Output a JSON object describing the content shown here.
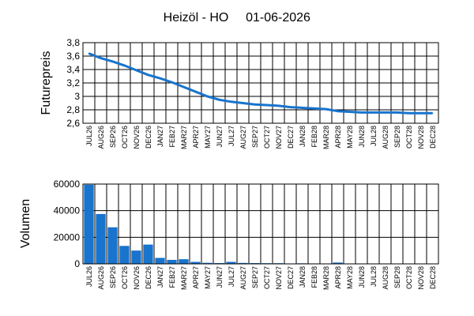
{
  "header": {
    "title": "Heizöl - HO",
    "date": "01-06-2026"
  },
  "colors": {
    "series": "#1874cd",
    "grid": "#000000",
    "background": "#ffffff"
  },
  "chart_data": [
    {
      "type": "line",
      "name": "price",
      "ylabel": "Futurepreis",
      "ylim": [
        2.6,
        3.8
      ],
      "yticks": [
        2.6,
        2.8,
        3,
        3.2,
        3.4,
        3.6,
        3.8
      ],
      "ytick_labels": [
        "2,6",
        "2,8",
        "3",
        "3,2",
        "3,4",
        "3,6",
        "3,8"
      ],
      "grid": true,
      "categories": [
        "JUL26",
        "AUG26",
        "SEP26",
        "OCT26",
        "NOV26",
        "DEC26",
        "JAN27",
        "FEB27",
        "MAR27",
        "APR27",
        "MAY27",
        "JUN27",
        "JUL27",
        "AUG27",
        "SEP27",
        "OCT27",
        "NOV27",
        "DEC27",
        "JAN28",
        "FEB28",
        "MAR28",
        "APR28",
        "MAY28",
        "JUN28",
        "JUL28",
        "AUG28",
        "SEP28",
        "OCT28",
        "NOV28",
        "DEC28"
      ],
      "values": [
        3.64,
        3.57,
        3.52,
        3.46,
        3.39,
        3.32,
        3.27,
        3.21,
        3.14,
        3.07,
        3.0,
        2.95,
        2.92,
        2.9,
        2.88,
        2.87,
        2.86,
        2.84,
        2.83,
        2.82,
        2.81,
        2.78,
        2.77,
        2.76,
        2.76,
        2.76,
        2.76,
        2.75,
        2.75,
        2.75
      ]
    },
    {
      "type": "bar",
      "name": "volume",
      "ylabel": "Volumen",
      "ylim": [
        0,
        60000
      ],
      "yticks": [
        0,
        20000,
        40000,
        60000
      ],
      "ytick_labels": [
        "0",
        "20000",
        "40000",
        "60000"
      ],
      "grid": true,
      "categories": [
        "JUL26",
        "AUG26",
        "SEP26",
        "OCT26",
        "NOV26",
        "DEC26",
        "JAN27",
        "FEB27",
        "MAR27",
        "APR27",
        "MAY27",
        "JUN27",
        "JUL27",
        "AUG27",
        "SEP27",
        "OCT27",
        "NOV27",
        "DEC27",
        "JAN28",
        "FEB28",
        "MAR28",
        "APR28",
        "MAY28",
        "JUN28",
        "JUL28",
        "AUG28",
        "SEP28",
        "OCT28",
        "NOV28",
        "DEC28"
      ],
      "values": [
        59500,
        37500,
        27500,
        13500,
        10000,
        14500,
        4500,
        3000,
        3500,
        1500,
        800,
        600,
        1500,
        700,
        600,
        500,
        500,
        300,
        400,
        300,
        200,
        1000,
        100,
        50,
        50,
        50,
        50,
        50,
        50,
        50
      ]
    }
  ]
}
